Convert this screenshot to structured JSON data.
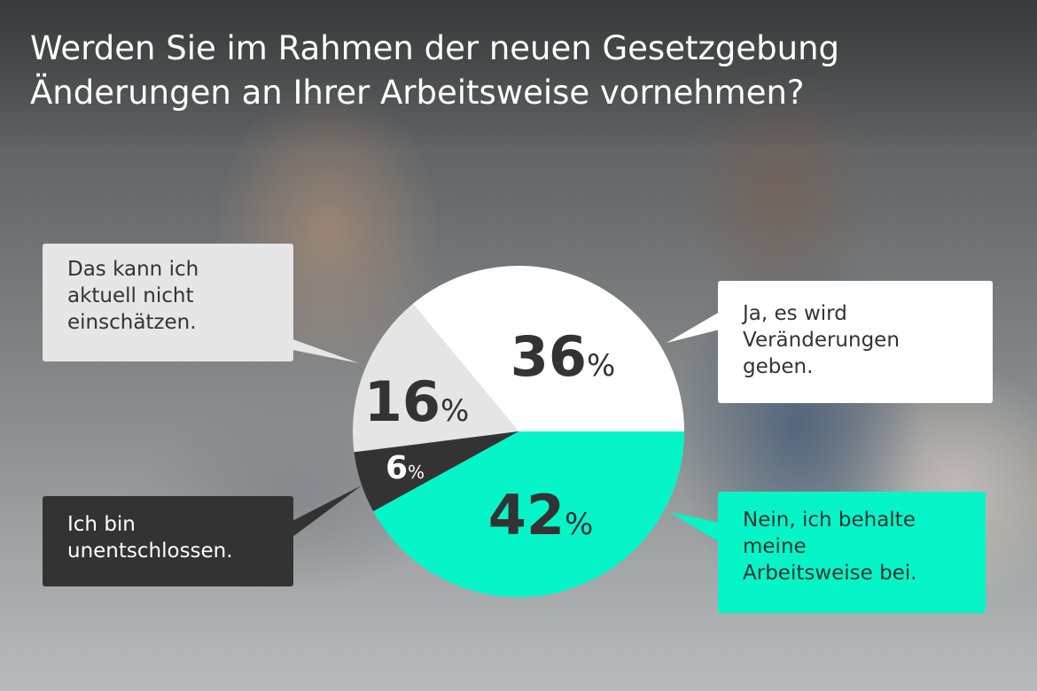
{
  "title": {
    "line1": "Werden Sie im Rahmen der neuen Gesetzgebung",
    "line2": "Änderungen an Ihrer Arbeitsweise vornehmen?"
  },
  "colors": {
    "yes": "#ffffff",
    "no": "#05f5c9",
    "undecided": "#333333",
    "unknown": "#e5e5e5",
    "text_dark": "#333333"
  },
  "chart_data": {
    "type": "pie",
    "title": "Werden Sie im Rahmen der neuen Gesetzgebung Änderungen an Ihrer Arbeitsweise vornehmen?",
    "start": "clockwise, 'Ja' slice ending at 3 o'clock",
    "slices": [
      {
        "key": "unknown",
        "value": 16,
        "label": "Das kann ich aktuell nicht einschätzen.",
        "label_lines": [
          "Das kann ich",
          "aktuell nicht",
          "einschätzen."
        ]
      },
      {
        "key": "yes",
        "value": 36,
        "label": "Ja, es wird Veränderungen geben.",
        "label_lines": [
          "Ja, es wird",
          "Veränderungen",
          "geben."
        ]
      },
      {
        "key": "no",
        "value": 42,
        "label": "Nein, ich behalte meine Arbeitsweise bei.",
        "label_lines": [
          "Nein, ich behalte",
          "meine",
          "Arbeitsweise bei."
        ]
      },
      {
        "key": "undecided",
        "value": 6,
        "label": "Ich bin unentschlossen.",
        "label_lines": [
          "Ich bin",
          "unentschlossen."
        ]
      }
    ],
    "unit": "%"
  }
}
